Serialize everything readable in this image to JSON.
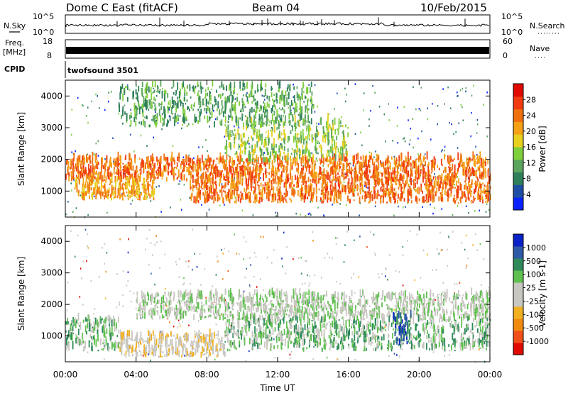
{
  "header": {
    "radar": "Dome C East (fitACF)",
    "beam": "Beam 04",
    "date": "10/Feb/2015"
  },
  "panels": {
    "nsky": {
      "label": "N.Sky",
      "ticks_left": [
        "10^5",
        "10^0"
      ],
      "right_label": "N.Search",
      "ticks_right": [
        "10^5",
        "10^0"
      ]
    },
    "freq": {
      "label_line1": "Freq.",
      "label_line2": "[MHz]",
      "ticks_left": [
        "18",
        "8"
      ],
      "right_label": "Nave",
      "ticks_right": [
        "60",
        "0"
      ]
    },
    "cpid": {
      "label": "CPID",
      "value": "twofsound 3501"
    }
  },
  "colors": {
    "power": [
      "#0a22ff",
      "#1e4fa5",
      "#2e7f5a",
      "#5ba55f",
      "#7fcf3c",
      "#e8d020",
      "#f5a015",
      "#f07010",
      "#f03a10",
      "#e00a00"
    ],
    "velocity": [
      "#e00a00",
      "#f05018",
      "#f08a10",
      "#f0b020",
      "#c8c6c0",
      "#c8c6c0",
      "#60c050",
      "#2e8a5a",
      "#2e5aa5",
      "#0a22c8"
    ],
    "grey": "#c8c6c0"
  },
  "chart_data": [
    {
      "type": "heatmap",
      "title": "Power",
      "xlabel": "",
      "ylabel": "Slant Range [km]",
      "xlim": [
        "00:00",
        "00:00"
      ],
      "ylim": [
        180,
        4500
      ],
      "x_ticks": [
        "00:00",
        "04:00",
        "08:00",
        "12:00",
        "16:00",
        "20:00",
        "00:00"
      ],
      "y_ticks": [
        1000,
        2000,
        3000,
        4000
      ],
      "colorbar": {
        "label": "Power [dB]",
        "range": [
          0,
          32
        ],
        "tick_labels": [
          "4",
          "8",
          "12",
          "16",
          "20",
          "24",
          "28"
        ]
      },
      "bands": [
        {
          "range_km": [
            1300,
            2000
          ],
          "time_h": [
            0,
            24
          ],
          "value_dB": 24
        },
        {
          "range_km": [
            700,
            1300
          ],
          "time_h": [
            0.5,
            5
          ],
          "value_dB": 22
        },
        {
          "range_km": [
            1900,
            3200
          ],
          "time_h": [
            9,
            16
          ],
          "value_dB": 14
        },
        {
          "range_km": [
            600,
            1300
          ],
          "time_h": [
            7,
            24
          ],
          "value_dB": 26
        },
        {
          "range_km": [
            3000,
            4300
          ],
          "time_h": [
            3,
            14
          ],
          "value_dB": 10
        }
      ]
    },
    {
      "type": "heatmap",
      "title": "Velocity",
      "xlabel": "Time UT",
      "ylabel": "Slant Range [km]",
      "xlim": [
        "00:00",
        "00:00"
      ],
      "ylim": [
        180,
        4500
      ],
      "x_ticks": [
        "00:00",
        "04:00",
        "08:00",
        "12:00",
        "16:00",
        "20:00",
        "00:00"
      ],
      "y_ticks": [
        1000,
        2000,
        3000,
        4000
      ],
      "colorbar": {
        "label": "Velocity [m s-1]",
        "tick_labels": [
          "1000",
          "500",
          "100",
          "25",
          "-25",
          "-100",
          "-500",
          "-1000"
        ]
      },
      "bands": [
        {
          "range_km": [
            1500,
            2300
          ],
          "time_h": [
            4,
            24
          ],
          "value_ms": 0
        },
        {
          "range_km": [
            500,
            1500
          ],
          "time_h": [
            0,
            3
          ],
          "value_ms": 300
        },
        {
          "range_km": [
            300,
            1000
          ],
          "time_h": [
            3,
            9
          ],
          "value_ms": -200
        },
        {
          "range_km": [
            500,
            1500
          ],
          "time_h": [
            9,
            24
          ],
          "value_ms": 300
        },
        {
          "range_km": [
            700,
            1600
          ],
          "time_h": [
            18.5,
            19.5
          ],
          "value_ms": 800
        }
      ]
    }
  ]
}
